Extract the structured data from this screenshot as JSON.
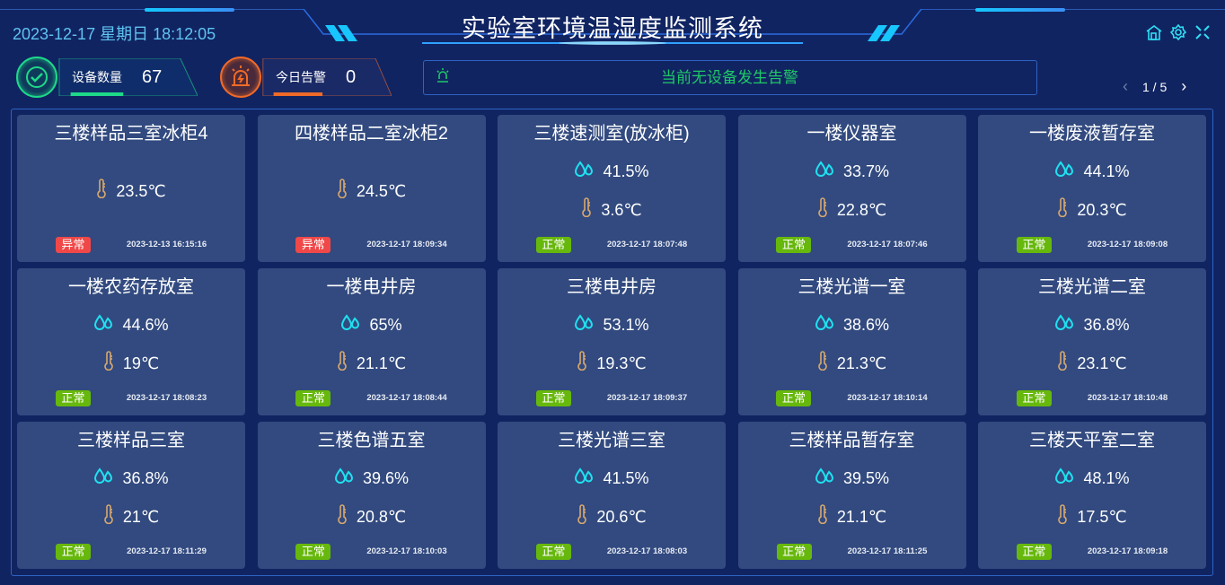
{
  "header": {
    "title": "实验室环境温湿度监测系统",
    "datetime": "2023-12-17 星期日 18:12:05",
    "icons": [
      "home-icon",
      "gear-icon",
      "fullscreen-icon"
    ]
  },
  "stats": [
    {
      "label": "设备数量",
      "value": "67",
      "color": "#1ed989",
      "icon": "check-cycle-icon"
    },
    {
      "label": "今日告警",
      "value": "0",
      "color": "#f06a28",
      "icon": "alarm-light-icon"
    }
  ],
  "alarm": {
    "text": "当前无设备发生告警",
    "color": "#1ec866",
    "icon": "alarm-light-icon"
  },
  "pager": {
    "text": "1 / 5",
    "prev": "‹",
    "next": "›"
  },
  "colors": {
    "normal": "#67b80c",
    "abnormal": "#f04848",
    "humidity_icon": "#1fe0f0",
    "temp_icon": "#d9a86c"
  },
  "devices": [
    {
      "name": "三楼样品三室冰柜4",
      "humidity": null,
      "temp": "23.5℃",
      "status": "异常",
      "time": "2023-12-13 16:15:16"
    },
    {
      "name": "四楼样品二室冰柜2",
      "humidity": null,
      "temp": "24.5℃",
      "status": "异常",
      "time": "2023-12-17 18:09:34"
    },
    {
      "name": "三楼速测室(放冰柜)",
      "humidity": "41.5%",
      "temp": "3.6℃",
      "status": "正常",
      "time": "2023-12-17 18:07:48"
    },
    {
      "name": "一楼仪器室",
      "humidity": "33.7%",
      "temp": "22.8℃",
      "status": "正常",
      "time": "2023-12-17 18:07:46"
    },
    {
      "name": "一楼废液暂存室",
      "humidity": "44.1%",
      "temp": "20.3℃",
      "status": "正常",
      "time": "2023-12-17 18:09:08"
    },
    {
      "name": "一楼农药存放室",
      "humidity": "44.6%",
      "temp": "19℃",
      "status": "正常",
      "time": "2023-12-17 18:08:23"
    },
    {
      "name": "一楼电井房",
      "humidity": "65%",
      "temp": "21.1℃",
      "status": "正常",
      "time": "2023-12-17 18:08:44"
    },
    {
      "name": "三楼电井房",
      "humidity": "53.1%",
      "temp": "19.3℃",
      "status": "正常",
      "time": "2023-12-17 18:09:37"
    },
    {
      "name": "三楼光谱一室",
      "humidity": "38.6%",
      "temp": "21.3℃",
      "status": "正常",
      "time": "2023-12-17 18:10:14"
    },
    {
      "name": "三楼光谱二室",
      "humidity": "36.8%",
      "temp": "23.1℃",
      "status": "正常",
      "time": "2023-12-17 18:10:48"
    },
    {
      "name": "三楼样品三室",
      "humidity": "36.8%",
      "temp": "21℃",
      "status": "正常",
      "time": "2023-12-17 18:11:29"
    },
    {
      "name": "三楼色谱五室",
      "humidity": "39.6%",
      "temp": "20.8℃",
      "status": "正常",
      "time": "2023-12-17 18:10:03"
    },
    {
      "name": "三楼光谱三室",
      "humidity": "41.5%",
      "temp": "20.6℃",
      "status": "正常",
      "time": "2023-12-17 18:08:03"
    },
    {
      "name": "三楼样品暂存室",
      "humidity": "39.5%",
      "temp": "21.1℃",
      "status": "正常",
      "time": "2023-12-17 18:11:25"
    },
    {
      "name": "三楼天平室二室",
      "humidity": "48.1%",
      "temp": "17.5℃",
      "status": "正常",
      "time": "2023-12-17 18:09:18"
    }
  ]
}
